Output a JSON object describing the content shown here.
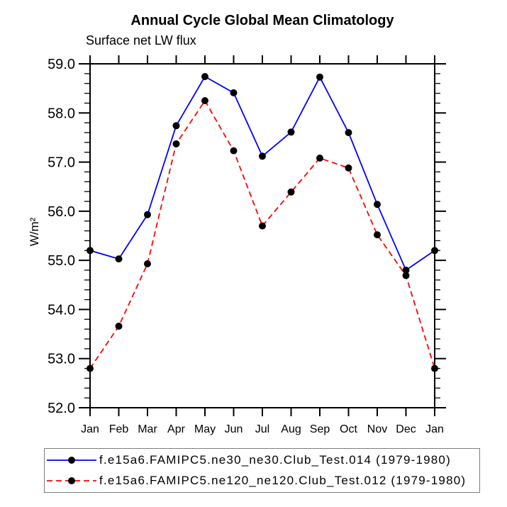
{
  "page": {
    "background": "#ffffff"
  },
  "chart_data": {
    "type": "line",
    "title": "Annual Cycle Global Mean Climatology",
    "subtitle": "Surface net LW flux",
    "xlabel": "",
    "ylabel": "W/m²",
    "categories": [
      "Jan",
      "Feb",
      "Mar",
      "Apr",
      "May",
      "Jun",
      "Jul",
      "Aug",
      "Sep",
      "Oct",
      "Nov",
      "Dec",
      "Jan"
    ],
    "ylim": [
      52.0,
      59.0
    ],
    "y_major_ticks": [
      "52.0",
      "53.0",
      "54.0",
      "55.0",
      "56.0",
      "57.0",
      "58.0",
      "59.0"
    ],
    "y_minor_step": 0.2,
    "grid": false,
    "legend_position": "bottom",
    "marker": {
      "shape": "circle",
      "color": "#000000",
      "radius": 5
    },
    "axis_color": "#000000",
    "series": [
      {
        "label": "f.e15a6.FAMIPC5.ne30_ne30.Club_Test.014 (1979-1980)",
        "color": "#0000ff",
        "style": "solid",
        "values": [
          55.2,
          55.03,
          55.93,
          57.74,
          58.74,
          58.41,
          57.12,
          57.61,
          58.73,
          57.6,
          56.14,
          54.8,
          55.2
        ]
      },
      {
        "label": "f.e15a6.FAMIPC5.ne120_ne120.Club_Test.012 (1979-1980)",
        "color": "#ff0000",
        "style": "dashed",
        "values": [
          52.8,
          53.66,
          54.93,
          57.37,
          58.25,
          57.23,
          55.7,
          56.39,
          57.08,
          56.88,
          55.52,
          54.69,
          52.8
        ]
      }
    ]
  }
}
